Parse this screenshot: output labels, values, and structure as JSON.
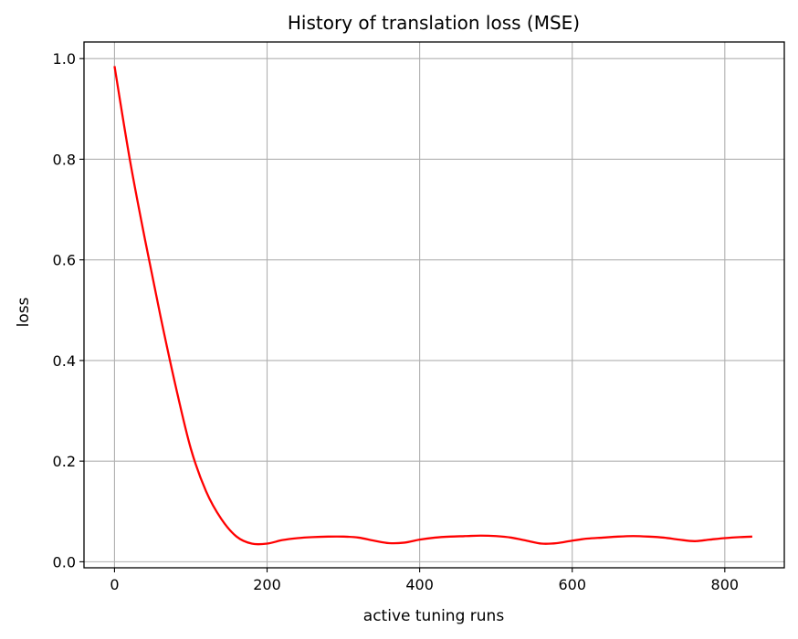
{
  "chart_data": {
    "type": "line",
    "title": "History of translation loss (MSE)",
    "xlabel": "active tuning runs",
    "ylabel": "loss",
    "xlim": [
      -40,
      878
    ],
    "ylim": [
      -0.012,
      1.033
    ],
    "xticks": [
      0,
      200,
      400,
      600,
      800
    ],
    "xtick_labels": [
      "0",
      "200",
      "400",
      "600",
      "800"
    ],
    "yticks": [
      0.0,
      0.2,
      0.4,
      0.6,
      0.8,
      1.0
    ],
    "ytick_labels": [
      "0.0",
      "0.2",
      "0.4",
      "0.6",
      "0.8",
      "1.0"
    ],
    "grid": true,
    "series": [
      {
        "color": "#ff0000",
        "x": [
          0,
          20,
          40,
          60,
          80,
          100,
          120,
          140,
          160,
          180,
          200,
          220,
          240,
          260,
          280,
          300,
          320,
          340,
          360,
          380,
          400,
          420,
          440,
          460,
          480,
          500,
          520,
          540,
          560,
          580,
          600,
          620,
          640,
          660,
          680,
          700,
          720,
          740,
          760,
          780,
          800,
          820,
          836
        ],
        "y": [
          0.985,
          0.8,
          0.64,
          0.49,
          0.35,
          0.225,
          0.14,
          0.085,
          0.05,
          0.036,
          0.036,
          0.043,
          0.047,
          0.049,
          0.05,
          0.05,
          0.048,
          0.042,
          0.037,
          0.038,
          0.044,
          0.048,
          0.05,
          0.051,
          0.052,
          0.051,
          0.048,
          0.042,
          0.036,
          0.037,
          0.042,
          0.046,
          0.048,
          0.05,
          0.051,
          0.05,
          0.048,
          0.044,
          0.041,
          0.044,
          0.047,
          0.049,
          0.05
        ]
      }
    ]
  }
}
